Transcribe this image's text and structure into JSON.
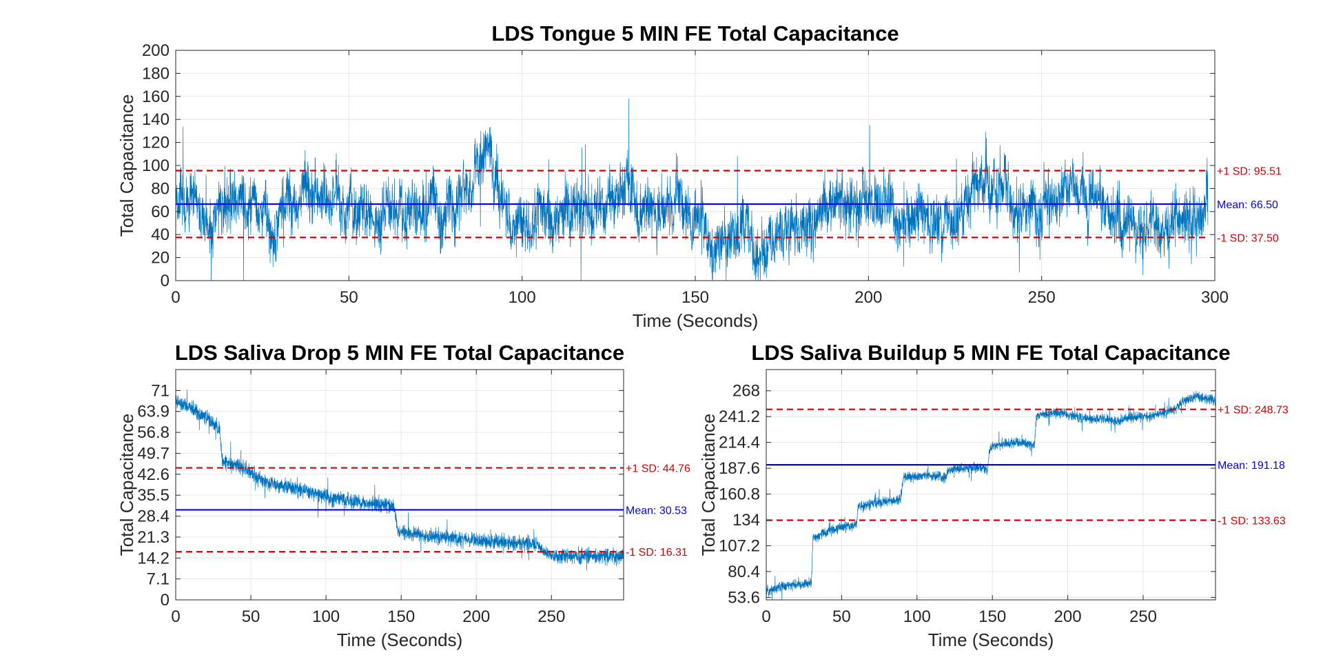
{
  "colors": {
    "signal": "#0072BD",
    "mean": "#0000FF",
    "sd": "#D00000",
    "grid": "#E6E6E6",
    "axis": "#262626"
  },
  "chart_data": [
    {
      "id": "tongue",
      "type": "line",
      "title": "LDS Tongue 5 MIN FE Total Capacitance",
      "xlabel": "Time (Seconds)",
      "ylabel": "Total Capacitance",
      "xlim": [
        0,
        300
      ],
      "ylim": [
        0,
        200
      ],
      "xticks": [
        0,
        50,
        100,
        150,
        200,
        250,
        300
      ],
      "yticks": [
        0,
        20,
        40,
        60,
        80,
        100,
        120,
        140,
        160,
        180,
        200
      ],
      "ytick_labels": [
        "0",
        "20",
        "40",
        "60",
        "80",
        "100",
        "120",
        "140",
        "160",
        "180",
        "200"
      ],
      "grid": true,
      "series": [
        {
          "x": [
            0,
            5,
            10,
            15,
            20,
            25,
            28,
            30,
            35,
            40,
            45,
            50,
            55,
            60,
            65,
            70,
            75,
            80,
            85,
            88,
            90,
            92,
            95,
            100,
            105,
            110,
            115,
            120,
            125,
            130,
            135,
            140,
            145,
            150,
            155,
            160,
            165,
            170,
            175,
            180,
            185,
            190,
            195,
            200,
            205,
            210,
            215,
            220,
            225,
            230,
            235,
            240,
            245,
            250,
            255,
            260,
            265,
            270,
            275,
            280,
            285,
            290,
            295,
            298
          ],
          "y": [
            70,
            72,
            60,
            65,
            75,
            60,
            30,
            70,
            72,
            85,
            68,
            70,
            45,
            60,
            65,
            55,
            60,
            70,
            75,
            95,
            140,
            85,
            70,
            50,
            60,
            45,
            70,
            40,
            72,
            80,
            60,
            50,
            70,
            55,
            40,
            45,
            40,
            35,
            40,
            50,
            60,
            70,
            65,
            75,
            70,
            40,
            55,
            50,
            60,
            80,
            85,
            70,
            65,
            60,
            75,
            80,
            70,
            45,
            55,
            40,
            50,
            55,
            60,
            70
          ]
        }
      ],
      "reference_lines": [
        {
          "kind": "sd_plus",
          "value": 95.51,
          "label": "+1 SD: 95.51"
        },
        {
          "kind": "mean",
          "value": 66.5,
          "label": "Mean: 66.50"
        },
        {
          "kind": "sd_minus",
          "value": 37.5,
          "label": "-1 SD: 37.50"
        }
      ]
    },
    {
      "id": "saliva_drop",
      "type": "line",
      "title": "LDS Saliva Drop 5 MIN FE Total Capacitance",
      "xlabel": "Time (Seconds)",
      "ylabel": "Total Capacitance",
      "xlim": [
        0,
        298
      ],
      "ylim": [
        0,
        78.1
      ],
      "xticks": [
        0,
        50,
        100,
        150,
        200,
        250
      ],
      "yticks": [
        0,
        7.1,
        14.2,
        21.3,
        28.4,
        35.5,
        42.6,
        49.7,
        56.8,
        63.9,
        71
      ],
      "ytick_labels": [
        "0",
        "7.1",
        "14.2",
        "21.3",
        "28.4",
        "35.5",
        "42.6",
        "49.7",
        "56.8",
        "63.9",
        "71"
      ],
      "grid": true,
      "series": [
        {
          "x": [
            0,
            10,
            20,
            29,
            31,
            40,
            50,
            60,
            80,
            100,
            120,
            140,
            145,
            148,
            160,
            200,
            240,
            246,
            250,
            298
          ],
          "y": [
            67,
            65,
            62,
            58,
            47,
            46,
            43,
            40,
            38,
            35,
            33,
            32,
            32,
            23,
            22,
            20,
            19,
            16,
            15,
            15
          ]
        }
      ],
      "reference_lines": [
        {
          "kind": "sd_plus",
          "value": 44.76,
          "label": "+1 SD: 44.76"
        },
        {
          "kind": "mean",
          "value": 30.53,
          "label": "Mean: 30.53"
        },
        {
          "kind": "sd_minus",
          "value": 16.31,
          "label": "-1 SD: 16.31"
        }
      ]
    },
    {
      "id": "saliva_buildup",
      "type": "line",
      "title": "LDS Saliva Buildup 5 MIN FE Total Capacitance",
      "xlabel": "Time (Seconds)",
      "ylabel": "Total Capacitance",
      "xlim": [
        0,
        298
      ],
      "ylim": [
        51,
        290
      ],
      "xticks": [
        0,
        50,
        100,
        150,
        200,
        250
      ],
      "yticks": [
        53.6,
        80.4,
        107.2,
        134,
        160.8,
        187.6,
        214.4,
        241.2,
        268
      ],
      "ytick_labels": [
        "53.6",
        "80.4",
        "107.2",
        "134",
        "160.8",
        "187.6",
        "214.4",
        "241.2",
        "268"
      ],
      "grid": true,
      "series": [
        {
          "x": [
            0,
            10,
            29,
            30,
            31,
            45,
            59,
            60,
            61,
            75,
            89,
            90,
            91,
            105,
            119,
            120,
            121,
            140,
            147,
            148,
            149,
            165,
            178,
            179,
            180,
            195,
            210,
            225,
            232,
            240,
            255,
            270,
            275,
            285,
            298
          ],
          "y": [
            60,
            65,
            68,
            70,
            115,
            125,
            128,
            132,
            148,
            152,
            155,
            167,
            178,
            180,
            178,
            184,
            186,
            188,
            186,
            205,
            210,
            215,
            212,
            238,
            243,
            245,
            240,
            238,
            236,
            240,
            242,
            248,
            255,
            262,
            258
          ]
        }
      ],
      "reference_lines": [
        {
          "kind": "sd_plus",
          "value": 248.73,
          "label": "+1 SD: 248.73"
        },
        {
          "kind": "mean",
          "value": 191.18,
          "label": "Mean: 191.18"
        },
        {
          "kind": "sd_minus",
          "value": 133.63,
          "label": "-1 SD: 133.63"
        }
      ]
    }
  ]
}
